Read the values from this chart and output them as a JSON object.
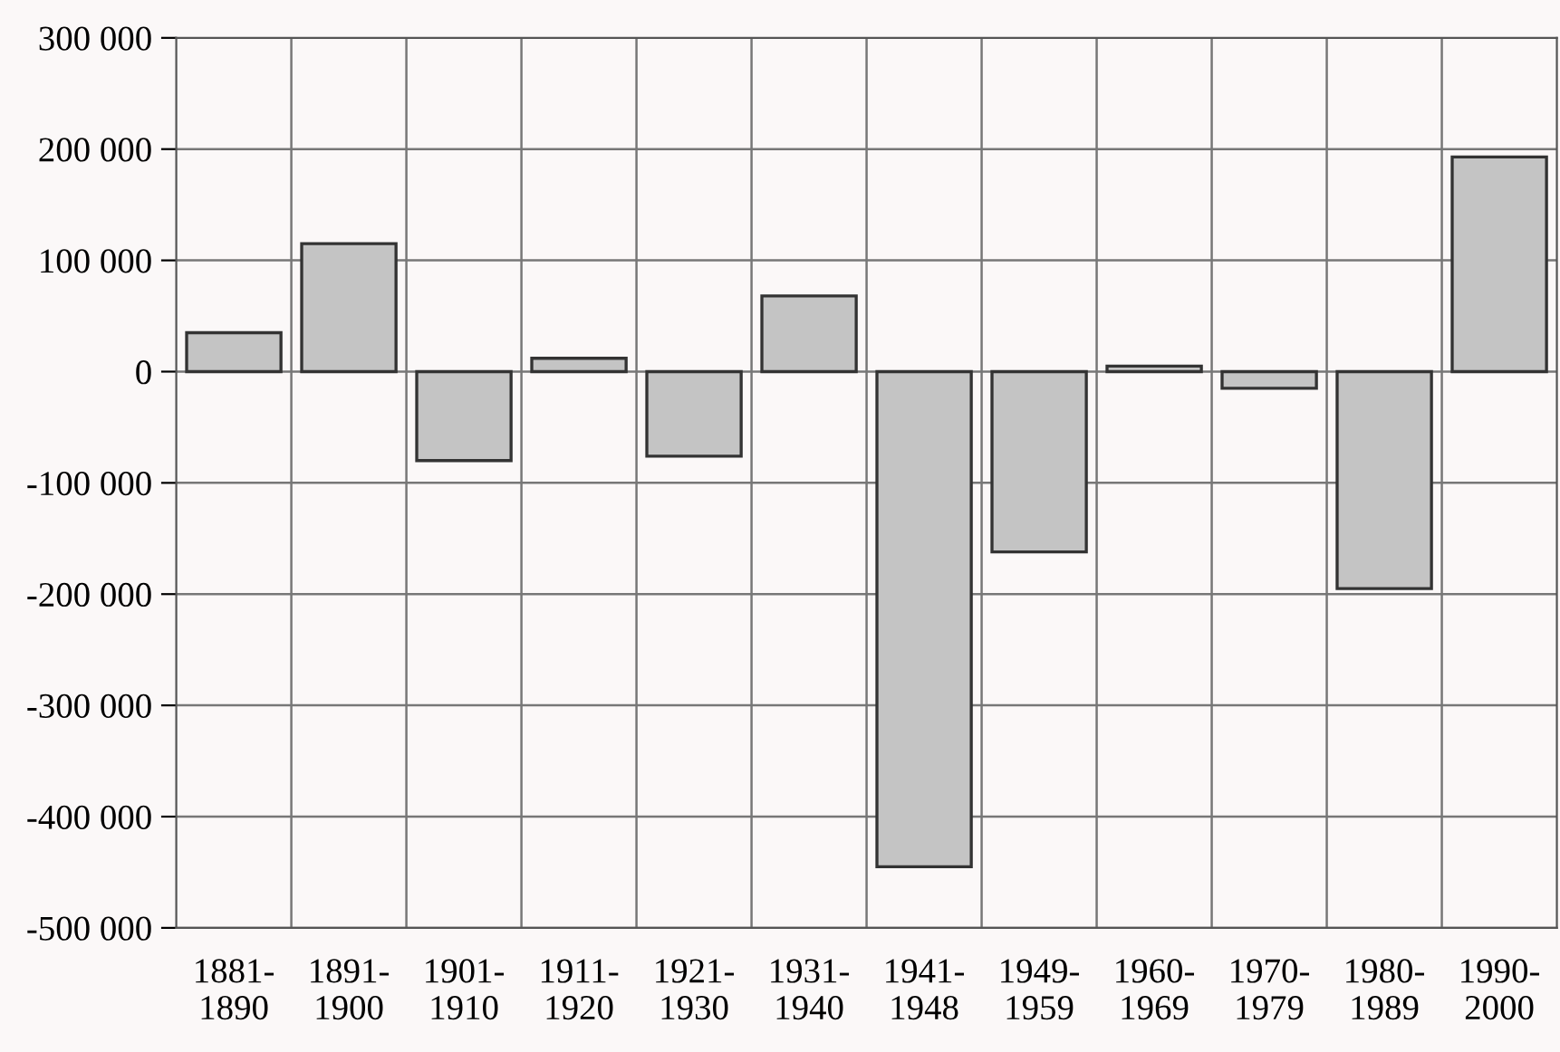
{
  "chart_data": {
    "type": "bar",
    "categories": [
      "1881-\n1890",
      "1891-\n1900",
      "1901-\n1910",
      "1911-\n1920",
      "1921-\n1930",
      "1931-\n1940",
      "1941-\n1948",
      "1949-\n1959",
      "1960-\n1969",
      "1970-\n1979",
      "1980-\n1989",
      "1990-\n2000"
    ],
    "values": [
      35000,
      115000,
      -80000,
      12000,
      -76000,
      68000,
      -445000,
      -162000,
      5000,
      -15000,
      -195000,
      193000
    ],
    "color": "#c4c4c4",
    "ylim": [
      -500000,
      300000
    ],
    "yticks": [
      {
        "value": -500000,
        "label": "-500 000"
      },
      {
        "value": -400000,
        "label": "-400 000"
      },
      {
        "value": -300000,
        "label": "-300 000"
      },
      {
        "value": -200000,
        "label": "-200 000"
      },
      {
        "value": -100000,
        "label": "-100 000"
      },
      0,
      {
        "value": 100000,
        "label": "100 000"
      },
      {
        "value": 200000,
        "label": "200 000"
      },
      {
        "value": 300000,
        "label": "300 000"
      }
    ],
    "grid": true
  }
}
